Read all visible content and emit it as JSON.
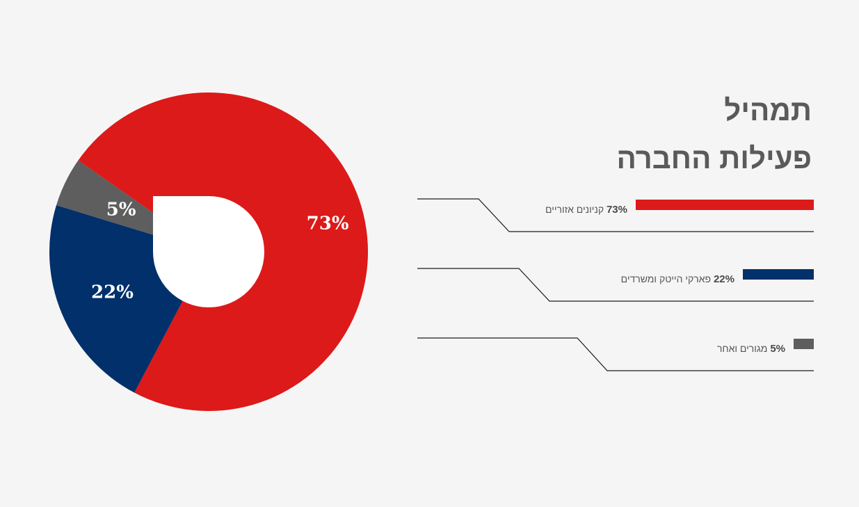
{
  "title": {
    "line1": "תמהיל",
    "line2": "פעילות החברה"
  },
  "colors": {
    "background": "#f5f5f5",
    "hole": "#ffffff",
    "label_text": "#ffffff",
    "title_text": "#5a5a5a"
  },
  "chart_data": {
    "type": "pie",
    "title": "תמהיל פעילות החברה",
    "values": [
      73,
      22,
      5
    ],
    "labels": [
      "73%",
      "22%",
      "5%"
    ],
    "colors": [
      "#dc1a19",
      "#02306b",
      "#5e5e5e"
    ],
    "legend": {
      "placement": "right",
      "entries": [
        {
          "percent": "73%",
          "text": "קניונים אזוריים",
          "color": "#dc1a19"
        },
        {
          "percent": "22%",
          "text": "פארקי הייטק ומשרדים",
          "color": "#02306b"
        },
        {
          "percent": "5%",
          "text": "מגורים ואחר",
          "color": "#5e5e5e"
        }
      ]
    }
  }
}
